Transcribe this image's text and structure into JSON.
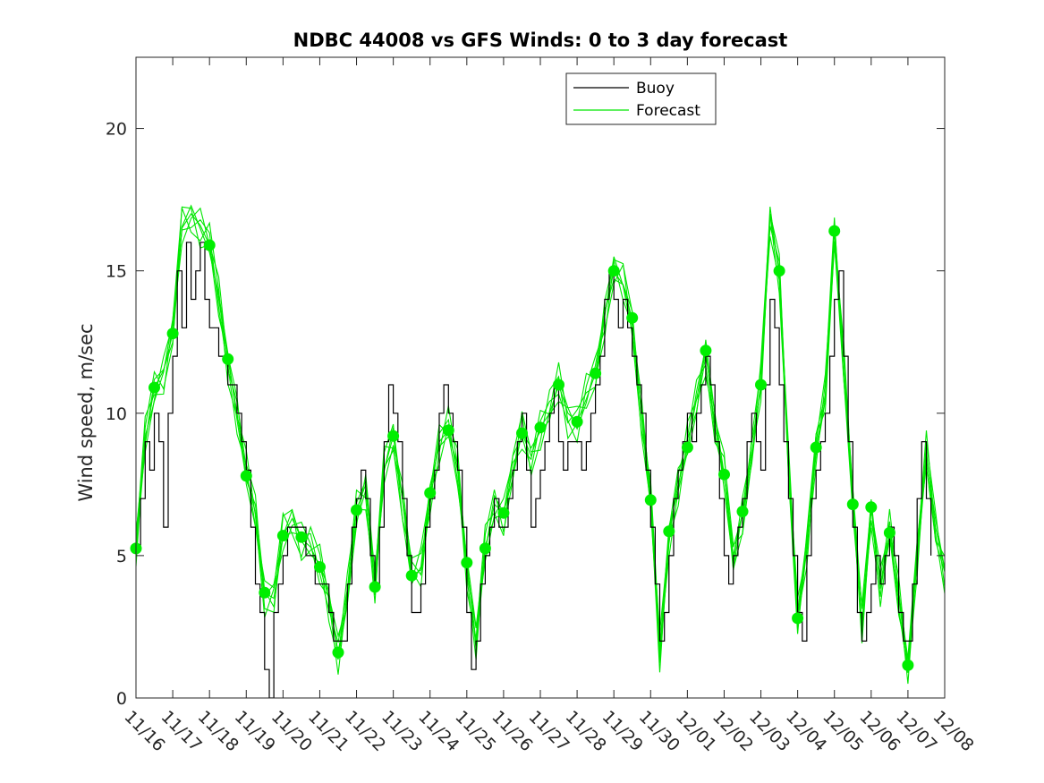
{
  "chart_data": {
    "type": "line",
    "title": "NDBC 44008 vs GFS Winds: 0 to 3 day forecast",
    "xlabel": "",
    "ylabel": "Wind speed, m/sec",
    "xlim": [
      "11/16",
      "12/08"
    ],
    "ylim": [
      0,
      22.5
    ],
    "x_ticks": [
      "11/16",
      "11/17",
      "11/18",
      "11/19",
      "11/20",
      "11/21",
      "11/22",
      "11/23",
      "11/24",
      "11/25",
      "11/26",
      "11/27",
      "11/28",
      "11/29",
      "11/30",
      "12/01",
      "12/02",
      "12/03",
      "12/04",
      "12/05",
      "12/06",
      "12/07",
      "12/08"
    ],
    "y_ticks": [
      0,
      5,
      10,
      15,
      20
    ],
    "grid": false,
    "legend": {
      "position": "top-right",
      "entries": [
        "Buoy",
        "Forecast"
      ]
    },
    "colors": {
      "buoy": "#000000",
      "forecast": "#00e600",
      "markers": "#00ee00"
    },
    "buoy_points": [
      [
        "11/16 00:00",
        5.2
      ],
      [
        "11/16 03:00",
        7
      ],
      [
        "11/16 06:00",
        9
      ],
      [
        "11/16 09:00",
        8
      ],
      [
        "11/16 12:00",
        10
      ],
      [
        "11/16 15:00",
        9
      ],
      [
        "11/16 18:00",
        6
      ],
      [
        "11/16 21:00",
        10
      ],
      [
        "11/17 00:00",
        12
      ],
      [
        "11/17 03:00",
        15
      ],
      [
        "11/17 06:00",
        13
      ],
      [
        "11/17 09:00",
        16
      ],
      [
        "11/17 12:00",
        14
      ],
      [
        "11/17 15:00",
        15
      ],
      [
        "11/17 18:00",
        16
      ],
      [
        "11/17 21:00",
        14
      ],
      [
        "11/18 00:00",
        13
      ],
      [
        "11/18 03:00",
        13
      ],
      [
        "11/18 06:00",
        12
      ],
      [
        "11/18 09:00",
        12
      ],
      [
        "11/18 12:00",
        11
      ],
      [
        "11/18 15:00",
        11
      ],
      [
        "11/18 18:00",
        10
      ],
      [
        "11/18 21:00",
        9
      ],
      [
        "11/19 00:00",
        8
      ],
      [
        "11/19 03:00",
        6
      ],
      [
        "11/19 06:00",
        4
      ],
      [
        "11/19 09:00",
        3
      ],
      [
        "11/19 12:00",
        1
      ],
      [
        "11/19 15:00",
        0
      ],
      [
        "11/19 18:00",
        3
      ],
      [
        "11/19 21:00",
        4
      ],
      [
        "11/20 00:00",
        5
      ],
      [
        "11/20 03:00",
        6
      ],
      [
        "11/20 06:00",
        6
      ],
      [
        "11/20 09:00",
        6
      ],
      [
        "11/20 12:00",
        6
      ],
      [
        "11/20 15:00",
        5
      ],
      [
        "11/20 18:00",
        5
      ],
      [
        "11/20 21:00",
        4
      ],
      [
        "11/21 00:00",
        4
      ],
      [
        "11/21 03:00",
        4
      ],
      [
        "11/21 06:00",
        3
      ],
      [
        "11/21 09:00",
        2
      ],
      [
        "11/21 12:00",
        2
      ],
      [
        "11/21 15:00",
        2
      ],
      [
        "11/21 18:00",
        4
      ],
      [
        "11/21 21:00",
        6
      ],
      [
        "11/22 00:00",
        7
      ],
      [
        "11/22 03:00",
        8
      ],
      [
        "11/22 06:00",
        7
      ],
      [
        "11/22 09:00",
        5
      ],
      [
        "11/22 12:00",
        4
      ],
      [
        "11/22 15:00",
        6
      ],
      [
        "11/22 18:00",
        9
      ],
      [
        "11/22 21:00",
        11
      ],
      [
        "11/23 00:00",
        10
      ],
      [
        "11/23 03:00",
        9
      ],
      [
        "11/23 06:00",
        7
      ],
      [
        "11/23 09:00",
        5
      ],
      [
        "11/23 12:00",
        3
      ],
      [
        "11/23 15:00",
        3
      ],
      [
        "11/23 18:00",
        4
      ],
      [
        "11/23 21:00",
        6
      ],
      [
        "11/24 00:00",
        7
      ],
      [
        "11/24 03:00",
        8
      ],
      [
        "11/24 06:00",
        10
      ],
      [
        "11/24 09:00",
        11
      ],
      [
        "11/24 12:00",
        10
      ],
      [
        "11/24 15:00",
        9
      ],
      [
        "11/24 18:00",
        8
      ],
      [
        "11/24 21:00",
        6
      ],
      [
        "11/25 00:00",
        3
      ],
      [
        "11/25 03:00",
        1
      ],
      [
        "11/25 06:00",
        2
      ],
      [
        "11/25 09:00",
        4
      ],
      [
        "11/25 12:00",
        5
      ],
      [
        "11/25 15:00",
        6
      ],
      [
        "11/25 18:00",
        7
      ],
      [
        "11/25 21:00",
        6
      ],
      [
        "11/26 00:00",
        6
      ],
      [
        "11/26 03:00",
        7
      ],
      [
        "11/26 06:00",
        8
      ],
      [
        "11/26 09:00",
        9
      ],
      [
        "11/26 12:00",
        10
      ],
      [
        "11/26 15:00",
        8
      ],
      [
        "11/26 18:00",
        6
      ],
      [
        "11/26 21:00",
        7
      ],
      [
        "11/27 00:00",
        8
      ],
      [
        "11/27 03:00",
        9
      ],
      [
        "11/27 06:00",
        10
      ],
      [
        "11/27 09:00",
        11
      ],
      [
        "11/27 12:00",
        9
      ],
      [
        "11/27 15:00",
        8
      ],
      [
        "11/27 18:00",
        9
      ],
      [
        "11/27 21:00",
        9
      ],
      [
        "11/28 00:00",
        9
      ],
      [
        "11/28 03:00",
        8
      ],
      [
        "11/28 06:00",
        9
      ],
      [
        "11/28 09:00",
        10
      ],
      [
        "11/28 12:00",
        11
      ],
      [
        "11/28 15:00",
        12
      ],
      [
        "11/28 18:00",
        14
      ],
      [
        "11/28 21:00",
        15
      ],
      [
        "11/29 00:00",
        14
      ],
      [
        "11/29 03:00",
        13
      ],
      [
        "11/29 06:00",
        14
      ],
      [
        "11/29 09:00",
        13
      ],
      [
        "11/29 12:00",
        12
      ],
      [
        "11/29 15:00",
        11
      ],
      [
        "11/29 18:00",
        10
      ],
      [
        "11/29 21:00",
        8
      ],
      [
        "11/30 00:00",
        6
      ],
      [
        "11/30 03:00",
        4
      ],
      [
        "11/30 06:00",
        2
      ],
      [
        "11/30 09:00",
        3
      ],
      [
        "11/30 12:00",
        5
      ],
      [
        "11/30 15:00",
        7
      ],
      [
        "11/30 18:00",
        8
      ],
      [
        "11/30 21:00",
        9
      ],
      [
        "12/01 00:00",
        10
      ],
      [
        "12/01 03:00",
        9
      ],
      [
        "12/01 06:00",
        10
      ],
      [
        "12/01 09:00",
        11
      ],
      [
        "12/01 12:00",
        12
      ],
      [
        "12/01 15:00",
        11
      ],
      [
        "12/01 18:00",
        9
      ],
      [
        "12/01 21:00",
        7
      ],
      [
        "12/02 00:00",
        5
      ],
      [
        "12/02 03:00",
        4
      ],
      [
        "12/02 06:00",
        5
      ],
      [
        "12/02 09:00",
        6
      ],
      [
        "12/02 12:00",
        7
      ],
      [
        "12/02 15:00",
        9
      ],
      [
        "12/02 18:00",
        10
      ],
      [
        "12/02 21:00",
        9
      ],
      [
        "12/03 00:00",
        8
      ],
      [
        "12/03 03:00",
        11
      ],
      [
        "12/03 06:00",
        14
      ],
      [
        "12/03 09:00",
        13
      ],
      [
        "12/03 12:00",
        11
      ],
      [
        "12/03 15:00",
        9
      ],
      [
        "12/03 18:00",
        7
      ],
      [
        "12/03 21:00",
        5
      ],
      [
        "12/04 00:00",
        3
      ],
      [
        "12/04 03:00",
        2
      ],
      [
        "12/04 06:00",
        5
      ],
      [
        "12/04 09:00",
        7
      ],
      [
        "12/04 12:00",
        8
      ],
      [
        "12/04 15:00",
        9
      ],
      [
        "12/04 18:00",
        10
      ],
      [
        "12/04 21:00",
        12
      ],
      [
        "12/05 00:00",
        14
      ],
      [
        "12/05 03:00",
        15
      ],
      [
        "12/05 06:00",
        12
      ],
      [
        "12/05 09:00",
        9
      ],
      [
        "12/05 12:00",
        6
      ],
      [
        "12/05 15:00",
        3
      ],
      [
        "12/05 18:00",
        2
      ],
      [
        "12/05 21:00",
        3
      ],
      [
        "12/06 00:00",
        4
      ],
      [
        "12/06 03:00",
        5
      ],
      [
        "12/06 06:00",
        4
      ],
      [
        "12/06 09:00",
        5
      ],
      [
        "12/06 12:00",
        6
      ],
      [
        "12/06 15:00",
        5
      ],
      [
        "12/06 18:00",
        3
      ],
      [
        "12/06 21:00",
        2
      ],
      [
        "12/07 00:00",
        2
      ],
      [
        "12/07 03:00",
        4
      ],
      [
        "12/07 06:00",
        7
      ],
      [
        "12/07 09:00",
        9
      ],
      [
        "12/07 12:00",
        7
      ],
      [
        "12/07 15:00",
        5
      ]
    ],
    "forecast_points": [
      [
        "11/16 00:00",
        5.3
      ],
      [
        "11/16 06:00",
        9
      ],
      [
        "11/16 12:00",
        10.9
      ],
      [
        "11/16 18:00",
        11.5
      ],
      [
        "11/17 00:00",
        12.8
      ],
      [
        "11/17 06:00",
        16.5
      ],
      [
        "11/17 12:00",
        17
      ],
      [
        "11/17 18:00",
        16.6
      ],
      [
        "11/18 00:00",
        15.9
      ],
      [
        "11/18 06:00",
        14
      ],
      [
        "11/18 12:00",
        11.9
      ],
      [
        "11/18 18:00",
        10
      ],
      [
        "11/19 00:00",
        7.8
      ],
      [
        "11/19 06:00",
        6.5
      ],
      [
        "11/19 12:00",
        3.7
      ],
      [
        "11/19 18:00",
        3.5
      ],
      [
        "11/20 00:00",
        5.7
      ],
      [
        "11/20 06:00",
        6.3
      ],
      [
        "11/20 12:00",
        5.6
      ],
      [
        "11/20 18:00",
        5.3
      ],
      [
        "11/21 00:00",
        4.6
      ],
      [
        "11/21 06:00",
        3.5
      ],
      [
        "11/21 12:00",
        1.6
      ],
      [
        "11/21 18:00",
        3.5
      ],
      [
        "11/22 00:00",
        6.6
      ],
      [
        "11/22 06:00",
        7.5
      ],
      [
        "11/22 12:00",
        3.9
      ],
      [
        "11/22 18:00",
        8
      ],
      [
        "11/23 00:00",
        9.2
      ],
      [
        "11/23 06:00",
        7
      ],
      [
        "11/23 12:00",
        4.3
      ],
      [
        "11/23 18:00",
        4.5
      ],
      [
        "11/24 00:00",
        7.2
      ],
      [
        "11/24 06:00",
        9
      ],
      [
        "11/24 12:00",
        9.4
      ],
      [
        "11/24 18:00",
        8
      ],
      [
        "11/25 00:00",
        4.7
      ],
      [
        "11/25 06:00",
        2
      ],
      [
        "11/25 12:00",
        5.2
      ],
      [
        "11/25 18:00",
        6.8
      ],
      [
        "11/26 00:00",
        6.5
      ],
      [
        "11/26 06:00",
        8
      ],
      [
        "11/26 12:00",
        9.3
      ],
      [
        "11/26 18:00",
        8.5
      ],
      [
        "11/27 00:00",
        9.5
      ],
      [
        "11/27 06:00",
        10
      ],
      [
        "11/27 12:00",
        11
      ],
      [
        "11/27 18:00",
        10
      ],
      [
        "11/28 00:00",
        9.7
      ],
      [
        "11/28 06:00",
        10.5
      ],
      [
        "11/28 12:00",
        11.4
      ],
      [
        "11/28 18:00",
        13.5
      ],
      [
        "11/29 00:00",
        15
      ],
      [
        "11/29 06:00",
        14.5
      ],
      [
        "11/29 12:00",
        13.3
      ],
      [
        "11/29 18:00",
        10
      ],
      [
        "11/30 00:00",
        6.9
      ],
      [
        "11/30 06:00",
        1.5
      ],
      [
        "11/30 12:00",
        5.8
      ],
      [
        "11/30 18:00",
        7.5
      ],
      [
        "12/01 00:00",
        8.8
      ],
      [
        "12/01 06:00",
        10.5
      ],
      [
        "12/01 12:00",
        12.2
      ],
      [
        "12/01 18:00",
        9.5
      ],
      [
        "12/02 00:00",
        7.8
      ],
      [
        "12/02 06:00",
        5
      ],
      [
        "12/02 12:00",
        6.5
      ],
      [
        "12/02 18:00",
        8.5
      ],
      [
        "12/03 00:00",
        11
      ],
      [
        "12/03 06:00",
        17
      ],
      [
        "12/03 12:00",
        15
      ],
      [
        "12/03 18:00",
        8
      ],
      [
        "12/04 00:00",
        2.8
      ],
      [
        "12/04 06:00",
        5.5
      ],
      [
        "12/04 12:00",
        8.8
      ],
      [
        "12/04 18:00",
        10.5
      ],
      [
        "12/05 00:00",
        16.4
      ],
      [
        "12/05 06:00",
        12
      ],
      [
        "12/05 12:00",
        6.8
      ],
      [
        "12/05 18:00",
        2.5
      ],
      [
        "12/06 00:00",
        6.7
      ],
      [
        "12/06 06:00",
        4
      ],
      [
        "12/06 12:00",
        5.8
      ],
      [
        "12/06 18:00",
        3.5
      ],
      [
        "12/07 00:00",
        1.2
      ],
      [
        "12/07 06:00",
        5
      ],
      [
        "12/07 12:00",
        8.5
      ],
      [
        "12/07 18:00",
        6
      ],
      [
        "12/08 00:00",
        4.5
      ]
    ],
    "forecast_offsets": [
      0,
      0.6,
      -0.5,
      0.9,
      -0.8,
      0.3
    ],
    "markers": [
      [
        "11/16 00:00",
        5.25
      ],
      [
        "11/16 12:00",
        10.9
      ],
      [
        "11/17 00:00",
        12.8
      ],
      [
        "11/18 00:00",
        15.9
      ],
      [
        "11/18 12:00",
        11.9
      ],
      [
        "11/19 00:00",
        7.8
      ],
      [
        "11/19 12:00",
        3.7
      ],
      [
        "11/20 00:00",
        5.7
      ],
      [
        "11/20 12:00",
        5.65
      ],
      [
        "11/21 00:00",
        4.6
      ],
      [
        "11/21 12:00",
        1.6
      ],
      [
        "11/22 00:00",
        6.6
      ],
      [
        "11/22 12:00",
        3.9
      ],
      [
        "11/23 00:00",
        9.2
      ],
      [
        "11/23 12:00",
        4.3
      ],
      [
        "11/24 00:00",
        7.2
      ],
      [
        "11/24 12:00",
        9.4
      ],
      [
        "11/25 00:00",
        4.75
      ],
      [
        "11/25 12:00",
        5.25
      ],
      [
        "11/26 00:00",
        6.5
      ],
      [
        "11/26 12:00",
        9.3
      ],
      [
        "11/27 00:00",
        9.5
      ],
      [
        "11/27 12:00",
        11
      ],
      [
        "11/28 00:00",
        9.7
      ],
      [
        "11/28 12:00",
        11.4
      ],
      [
        "11/29 00:00",
        15
      ],
      [
        "11/29 12:00",
        13.35
      ],
      [
        "11/30 00:00",
        6.95
      ],
      [
        "11/30 12:00",
        5.85
      ],
      [
        "12/01 00:00",
        8.8
      ],
      [
        "12/01 12:00",
        12.2
      ],
      [
        "12/02 00:00",
        7.85
      ],
      [
        "12/02 12:00",
        6.55
      ],
      [
        "12/03 00:00",
        11
      ],
      [
        "12/03 12:00",
        15
      ],
      [
        "12/04 00:00",
        2.8
      ],
      [
        "12/04 12:00",
        8.8
      ],
      [
        "12/05 00:00",
        16.4
      ],
      [
        "12/05 12:00",
        6.8
      ],
      [
        "12/06 00:00",
        6.7
      ],
      [
        "12/06 12:00",
        5.8
      ],
      [
        "12/07 00:00",
        1.15
      ]
    ]
  }
}
